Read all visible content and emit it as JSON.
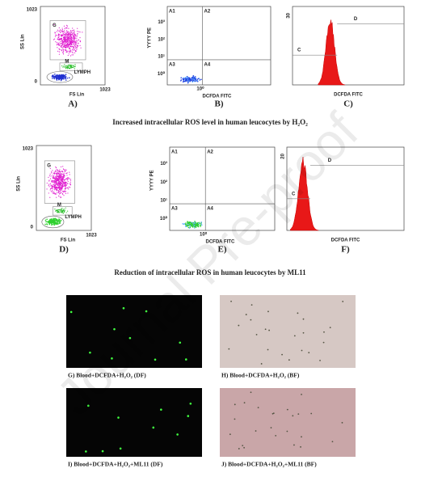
{
  "panels": [
    {
      "type": "scatter",
      "label": "A)",
      "y_label": "SS Lin",
      "x_label": "FS Lin",
      "y_ticks": [
        "1023",
        "0"
      ],
      "x_tick": "1023",
      "gates": [
        "G",
        "M",
        "LYMPH"
      ],
      "cell_color": "#2030d0"
    },
    {
      "type": "quadrant",
      "label": "B)",
      "y_label": "YYYY PE",
      "x_label": "DCFDA FITC",
      "y_ticks": [
        "10³",
        "10²",
        "10¹",
        "10⁰"
      ],
      "x_tick": "10⁰",
      "quadrants": [
        "A1",
        "A2",
        "A3",
        "A4"
      ],
      "cell_color": "#2040e0"
    },
    {
      "type": "histogram",
      "label": "C)",
      "y_tick": "30",
      "x_label": "DCFDA FITC",
      "gates": [
        "D",
        "C"
      ],
      "peak_x": 0.35
    },
    {
      "type": "scatter",
      "label": "D)",
      "y_label": "SS Lin",
      "x_label": "FS Lin",
      "y_ticks": [
        "1023",
        "0"
      ],
      "x_tick": "1023",
      "gates": [
        "G",
        "M",
        "LYMPH"
      ],
      "cell_color": "#30d030"
    },
    {
      "type": "quadrant",
      "label": "E)",
      "y_label": "YYYY PE",
      "x_label": "DCFDA FITC",
      "y_ticks": [
        "10³",
        "10²",
        "10¹",
        "10⁰"
      ],
      "x_tick": "10⁰",
      "quadrants": [
        "A1",
        "A2",
        "A3",
        "A4"
      ],
      "cell_color": "#30d030"
    },
    {
      "type": "histogram",
      "label": "F)",
      "y_tick": "20",
      "x_label": "DCFDA FITC",
      "gates": [
        "D",
        "C"
      ],
      "peak_x": 0.15
    }
  ],
  "captions": [
    "Increased intracellular ROS level in human leucocytes by H₂O₂",
    "Reduction of intracellular ROS in human leucocytes by ML11"
  ],
  "images": [
    {
      "type": "dark",
      "caption": "G) Blood+DCFDA+H₂O₂ (DF)"
    },
    {
      "type": "bright",
      "caption": "H) Blood+DCFDA+H₂O₂ (BF)"
    },
    {
      "type": "dark",
      "caption": "I) Blood+DCFDA+H₂O₂+ML11 (DF)"
    },
    {
      "type": "bright",
      "caption": "J) Blood+DCFDA+H₂O₂+ML11 (BF)"
    }
  ],
  "watermark": "Journal Pre-proof"
}
